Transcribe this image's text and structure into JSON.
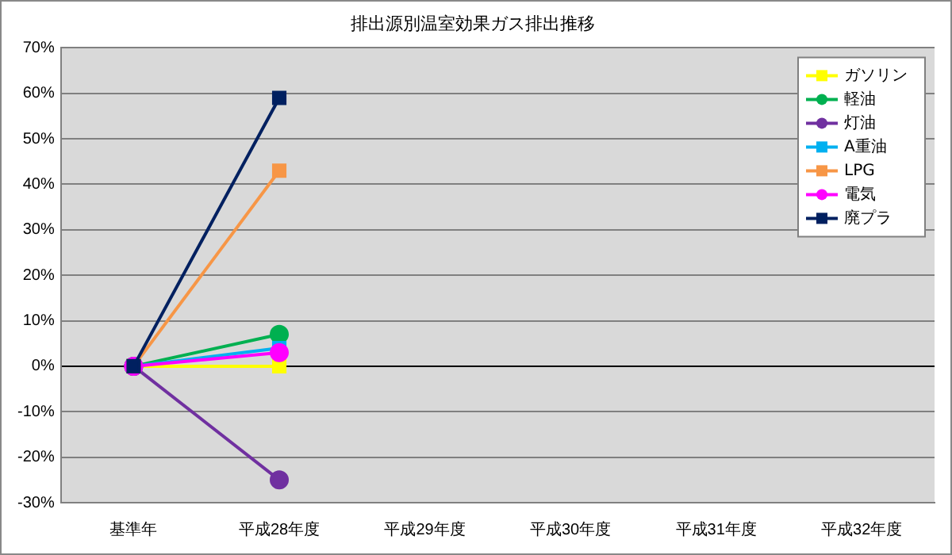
{
  "chart_data": {
    "type": "line",
    "title": "排出源別温室効果ガス排出推移",
    "categories": [
      "基準年",
      "平成28年度",
      "平成29年度",
      "平成30年度",
      "平成31年度",
      "平成32年度"
    ],
    "series": [
      {
        "name": "ガソリン",
        "color": "#ffff00",
        "marker": "square",
        "values": [
          0,
          0,
          null,
          null,
          null,
          null
        ]
      },
      {
        "name": "軽油",
        "color": "#00b050",
        "marker": "circle",
        "values": [
          0,
          7,
          null,
          null,
          null,
          null
        ]
      },
      {
        "name": "灯油",
        "color": "#7030a0",
        "marker": "circle",
        "values": [
          0,
          -25,
          null,
          null,
          null,
          null
        ]
      },
      {
        "name": "A重油",
        "color": "#00b0f0",
        "marker": "square",
        "values": [
          0,
          4,
          null,
          null,
          null,
          null
        ]
      },
      {
        "name": "LPG",
        "color": "#f79646",
        "marker": "square",
        "values": [
          0,
          43,
          null,
          null,
          null,
          null
        ]
      },
      {
        "name": "電気",
        "color": "#ff00ff",
        "marker": "circle",
        "values": [
          0,
          3,
          null,
          null,
          null,
          null
        ]
      },
      {
        "name": "廃プラ",
        "color": "#002060",
        "marker": "square",
        "values": [
          0,
          59,
          null,
          null,
          null,
          null
        ]
      }
    ],
    "ylim": [
      -30,
      70
    ],
    "yticks": [
      {
        "value": -30,
        "label": "-30%"
      },
      {
        "value": -20,
        "label": "-20%"
      },
      {
        "value": -10,
        "label": "-10%"
      },
      {
        "value": 0,
        "label": "0%"
      },
      {
        "value": 10,
        "label": "10%"
      },
      {
        "value": 20,
        "label": "20%"
      },
      {
        "value": 30,
        "label": "30%"
      },
      {
        "value": 40,
        "label": "40%"
      },
      {
        "value": 50,
        "label": "50%"
      },
      {
        "value": 60,
        "label": "60%"
      },
      {
        "value": 70,
        "label": "70%"
      }
    ],
    "grid": "y",
    "legend": "top right",
    "line_style": "solid"
  }
}
